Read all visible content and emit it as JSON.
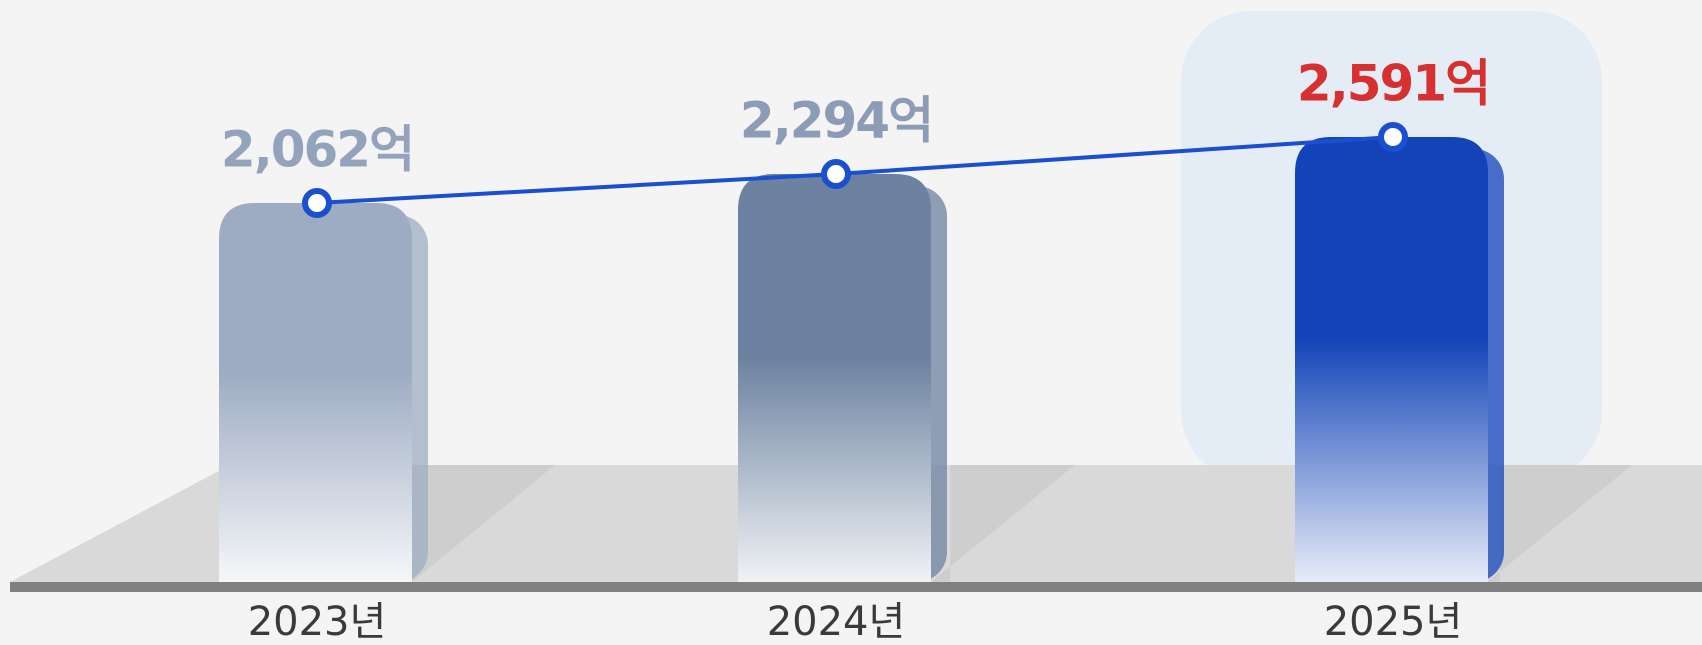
{
  "chart_data": {
    "type": "bar",
    "categories": [
      "2023년",
      "2024년",
      "2025년"
    ],
    "values": [
      2062,
      2294,
      2591
    ],
    "value_labels": [
      "2,062억",
      "2,294억",
      "2,591억"
    ],
    "colors": [
      "#9eacc3",
      "#6c82a0",
      "#1244b8"
    ],
    "label_colors": [
      "#94a3bc",
      "#8c9cb6",
      "#d63030"
    ],
    "line_color": "#1a4fd0"
  }
}
